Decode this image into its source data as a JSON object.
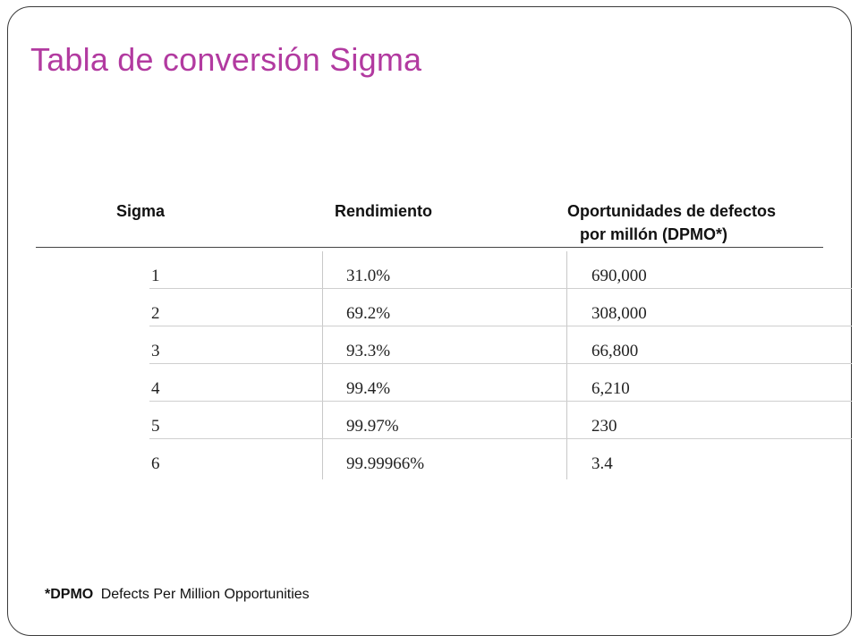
{
  "slide": {
    "title": "Tabla de conversión Sigma"
  },
  "table": {
    "headers": {
      "sigma": "Sigma",
      "rendimiento": "Rendimiento",
      "dpmo_line1": "Oportunidades de defectos",
      "dpmo_line2": "por millón (DPMO*)"
    },
    "rows": [
      {
        "sigma": "1",
        "rendimiento": "31.0%",
        "dpmo": "690,000"
      },
      {
        "sigma": "2",
        "rendimiento": "69.2%",
        "dpmo": "308,000"
      },
      {
        "sigma": "3",
        "rendimiento": "93.3%",
        "dpmo": "66,800"
      },
      {
        "sigma": "4",
        "rendimiento": "99.4%",
        "dpmo": "6,210"
      },
      {
        "sigma": "5",
        "rendimiento": "99.97%",
        "dpmo": "230"
      },
      {
        "sigma": "6",
        "rendimiento": "99.99966%",
        "dpmo": "3.4"
      }
    ]
  },
  "footnote": {
    "term": "*DPMO",
    "definition": "Defects Per Million Opportunities"
  },
  "colors": {
    "title": "#b23aa0",
    "border": "#3a3a3a"
  }
}
